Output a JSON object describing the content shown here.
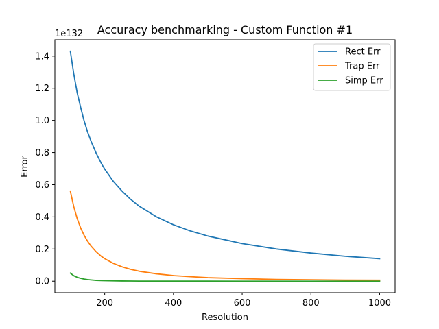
{
  "chart_data": {
    "type": "line",
    "title": "Accuracy benchmarking - Custom Function #1",
    "xlabel": "Resolution",
    "ylabel": "Error",
    "y_offset_label": "1e132",
    "xlim": [
      55,
      1045
    ],
    "ylim": [
      -0.0715,
      1.5015
    ],
    "xticks": [
      200,
      400,
      600,
      800,
      1000
    ],
    "yticks": [
      0.0,
      0.2,
      0.4,
      0.6,
      0.8,
      1.0,
      1.2,
      1.4
    ],
    "ytick_labels": [
      "0.0",
      "0.2",
      "0.4",
      "0.6",
      "0.8",
      "1.0",
      "1.2",
      "1.4"
    ],
    "grid": false,
    "legend_position": "top-right",
    "x": [
      100,
      110,
      120,
      130,
      140,
      150,
      160,
      175,
      190,
      200,
      225,
      250,
      275,
      300,
      350,
      400,
      450,
      500,
      600,
      700,
      800,
      900,
      1000
    ],
    "series": [
      {
        "name": "Rect Err",
        "color": "#1f77b4",
        "values": [
          1.43,
          1.289,
          1.171,
          1.081,
          0.998,
          0.929,
          0.872,
          0.797,
          0.733,
          0.697,
          0.621,
          0.561,
          0.51,
          0.467,
          0.401,
          0.351,
          0.312,
          0.281,
          0.234,
          0.2,
          0.175,
          0.155,
          0.14
        ]
      },
      {
        "name": "Trap Err",
        "color": "#ff7f0e",
        "values": [
          0.56,
          0.463,
          0.389,
          0.331,
          0.286,
          0.249,
          0.219,
          0.183,
          0.155,
          0.14,
          0.111,
          0.09,
          0.074,
          0.062,
          0.046,
          0.035,
          0.028,
          0.022,
          0.016,
          0.011,
          0.009,
          0.007,
          0.006
        ]
      },
      {
        "name": "Simp Err",
        "color": "#2ca02c",
        "values": [
          0.05,
          0.034,
          0.024,
          0.018,
          0.013,
          0.01,
          0.008,
          0.005,
          0.004,
          0.003,
          0.002,
          0.0013,
          0.0009,
          0.0006,
          0.0003,
          0.0002,
          0.0001,
          0.0001,
          0.0,
          0.0,
          0.0,
          0.0,
          0.0
        ]
      }
    ]
  }
}
